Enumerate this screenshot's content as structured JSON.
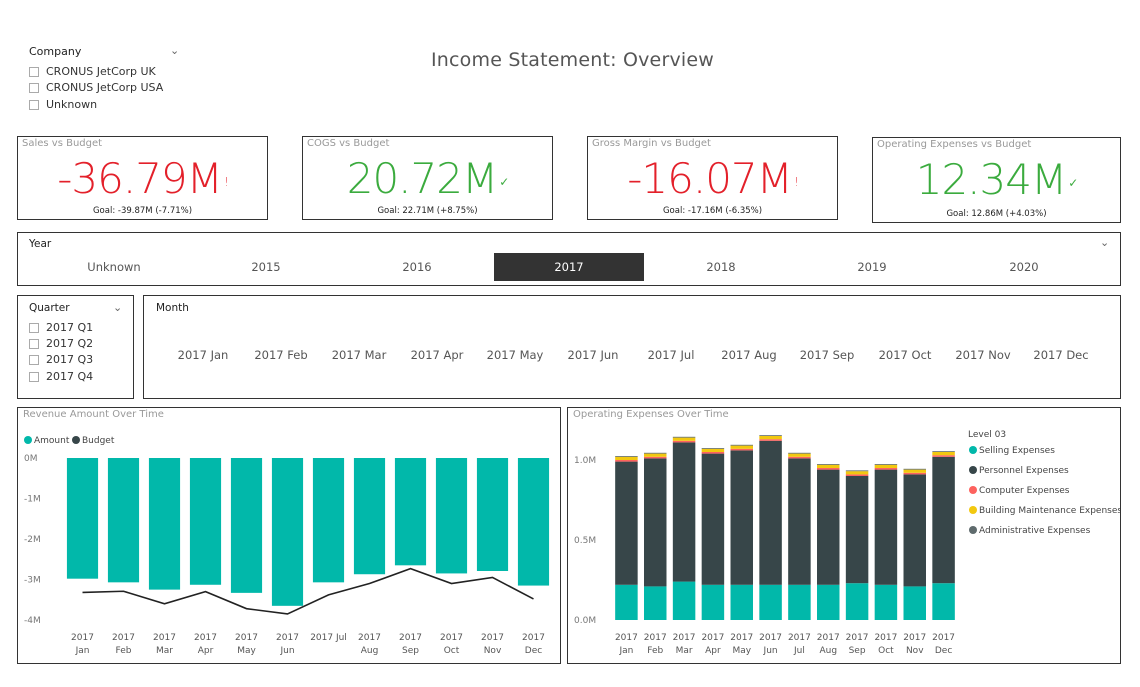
{
  "company_slicer": {
    "title": "Company",
    "options": [
      "CRONUS JetCorp UK",
      "CRONUS JetCorp USA",
      "Unknown"
    ]
  },
  "page_title": "Income Statement:  Overview",
  "kpis": [
    {
      "title": "Sales vs Budget",
      "value": "-36.79M",
      "mark": "!",
      "status": "bad",
      "goal": "Goal: -39.87M (-7.71%)"
    },
    {
      "title": "COGS vs Budget",
      "value": "20.72M",
      "mark": "✓",
      "status": "good",
      "goal": "Goal: 22.71M (+8.75%)"
    },
    {
      "title": "Gross Margin vs Budget",
      "value": "-16.07M",
      "mark": "!",
      "status": "bad",
      "goal": "Goal: -17.16M (-6.35%)"
    },
    {
      "title": "Operating Expenses vs Budget",
      "value": "12.34M",
      "mark": "✓",
      "status": "good",
      "goal": "Goal: 12.86M (+4.03%)"
    }
  ],
  "year_slicer": {
    "title": "Year",
    "options": [
      "Unknown",
      "2015",
      "2016",
      "2017",
      "2018",
      "2019",
      "2020"
    ],
    "selected": "2017"
  },
  "quarter_slicer": {
    "title": "Quarter",
    "options": [
      "2017 Q1",
      "2017 Q2",
      "2017 Q3",
      "2017 Q4"
    ]
  },
  "month_slicer": {
    "title": "Month",
    "options": [
      "2017 Jan",
      "2017 Feb",
      "2017 Mar",
      "2017 Apr",
      "2017 May",
      "2017 Jun",
      "2017 Jul",
      "2017 Aug",
      "2017 Sep",
      "2017 Oct",
      "2017 Nov",
      "2017 Dec"
    ]
  },
  "colors": {
    "teal": "#01b8aa",
    "dark": "#374649",
    "red": "#fd625e",
    "yellow": "#f2c80f",
    "gray": "#5f6b6d",
    "bad": "#e3202a",
    "good": "#3bab3e"
  },
  "chart_data": [
    {
      "type": "bar",
      "title": "Revenue Amount Over Time",
      "legend": [
        "Amount",
        "Budget"
      ],
      "legend_position": "top-left",
      "categories": [
        [
          "2017",
          "Jan"
        ],
        [
          "2017",
          "Feb"
        ],
        [
          "2017",
          "Mar"
        ],
        [
          "2017",
          "Apr"
        ],
        [
          "2017",
          "May"
        ],
        [
          "2017",
          "Jun"
        ],
        [
          "2017 Jul"
        ],
        [
          "2017",
          "Aug"
        ],
        [
          "2017",
          "Sep"
        ],
        [
          "2017",
          "Oct"
        ],
        [
          "2017",
          "Nov"
        ],
        [
          "2017",
          "Dec"
        ]
      ],
      "series": [
        {
          "name": "Amount",
          "kind": "bar",
          "values": [
            -2.98,
            -3.07,
            -3.25,
            -3.13,
            -3.33,
            -3.65,
            -3.07,
            -2.87,
            -2.65,
            -2.85,
            -2.79,
            -3.15
          ]
        },
        {
          "name": "Budget",
          "kind": "line",
          "values": [
            -3.32,
            -3.29,
            -3.6,
            -3.3,
            -3.72,
            -3.85,
            -3.38,
            -3.1,
            -2.73,
            -3.1,
            -2.95,
            -3.48
          ]
        }
      ],
      "y_ticks": [
        {
          "v": 0,
          "label": "0M"
        },
        {
          "v": -1,
          "label": "-1M"
        },
        {
          "v": -2,
          "label": "-2M"
        },
        {
          "v": -3,
          "label": "-3M"
        },
        {
          "v": -4,
          "label": "-4M"
        }
      ],
      "ylim": [
        -4,
        0
      ]
    },
    {
      "type": "bar",
      "stacked": true,
      "title": "Operating Expenses Over Time",
      "legend_title": "Level 03",
      "legend_position": "right",
      "categories": [
        [
          "2017",
          "Jan"
        ],
        [
          "2017",
          "Feb"
        ],
        [
          "2017",
          "Mar"
        ],
        [
          "2017",
          "Apr"
        ],
        [
          "2017",
          "May"
        ],
        [
          "2017",
          "Jun"
        ],
        [
          "2017",
          "Jul"
        ],
        [
          "2017",
          "Aug"
        ],
        [
          "2017",
          "Sep"
        ],
        [
          "2017",
          "Oct"
        ],
        [
          "2017",
          "Nov"
        ],
        [
          "2017",
          "Dec"
        ]
      ],
      "series": [
        {
          "name": "Selling Expenses",
          "values": [
            0.22,
            0.21,
            0.24,
            0.22,
            0.22,
            0.22,
            0.22,
            0.22,
            0.23,
            0.22,
            0.21,
            0.23
          ]
        },
        {
          "name": "Personnel Expenses",
          "values": [
            0.77,
            0.8,
            0.87,
            0.82,
            0.84,
            0.9,
            0.79,
            0.72,
            0.67,
            0.72,
            0.7,
            0.79
          ]
        },
        {
          "name": "Computer Expenses",
          "values": [
            0.01,
            0.01,
            0.01,
            0.01,
            0.01,
            0.01,
            0.01,
            0.01,
            0.01,
            0.01,
            0.01,
            0.01
          ]
        },
        {
          "name": "Building Maintenance Expenses",
          "values": [
            0.02,
            0.02,
            0.02,
            0.02,
            0.02,
            0.02,
            0.02,
            0.02,
            0.02,
            0.02,
            0.02,
            0.02
          ]
        },
        {
          "name": "Administrative Expenses",
          "values": [
            0.005,
            0.005,
            0.005,
            0.005,
            0.005,
            0.005,
            0.005,
            0.005,
            0.005,
            0.005,
            0.005,
            0.005
          ]
        }
      ],
      "series_colors": [
        "#01b8aa",
        "#374649",
        "#fd625e",
        "#f2c80f",
        "#5f6b6d"
      ],
      "y_ticks": [
        {
          "v": 0,
          "label": "0.0M"
        },
        {
          "v": 0.5,
          "label": "0.5M"
        },
        {
          "v": 1.0,
          "label": "1.0M"
        }
      ],
      "ylim": [
        0,
        1.2
      ]
    }
  ]
}
